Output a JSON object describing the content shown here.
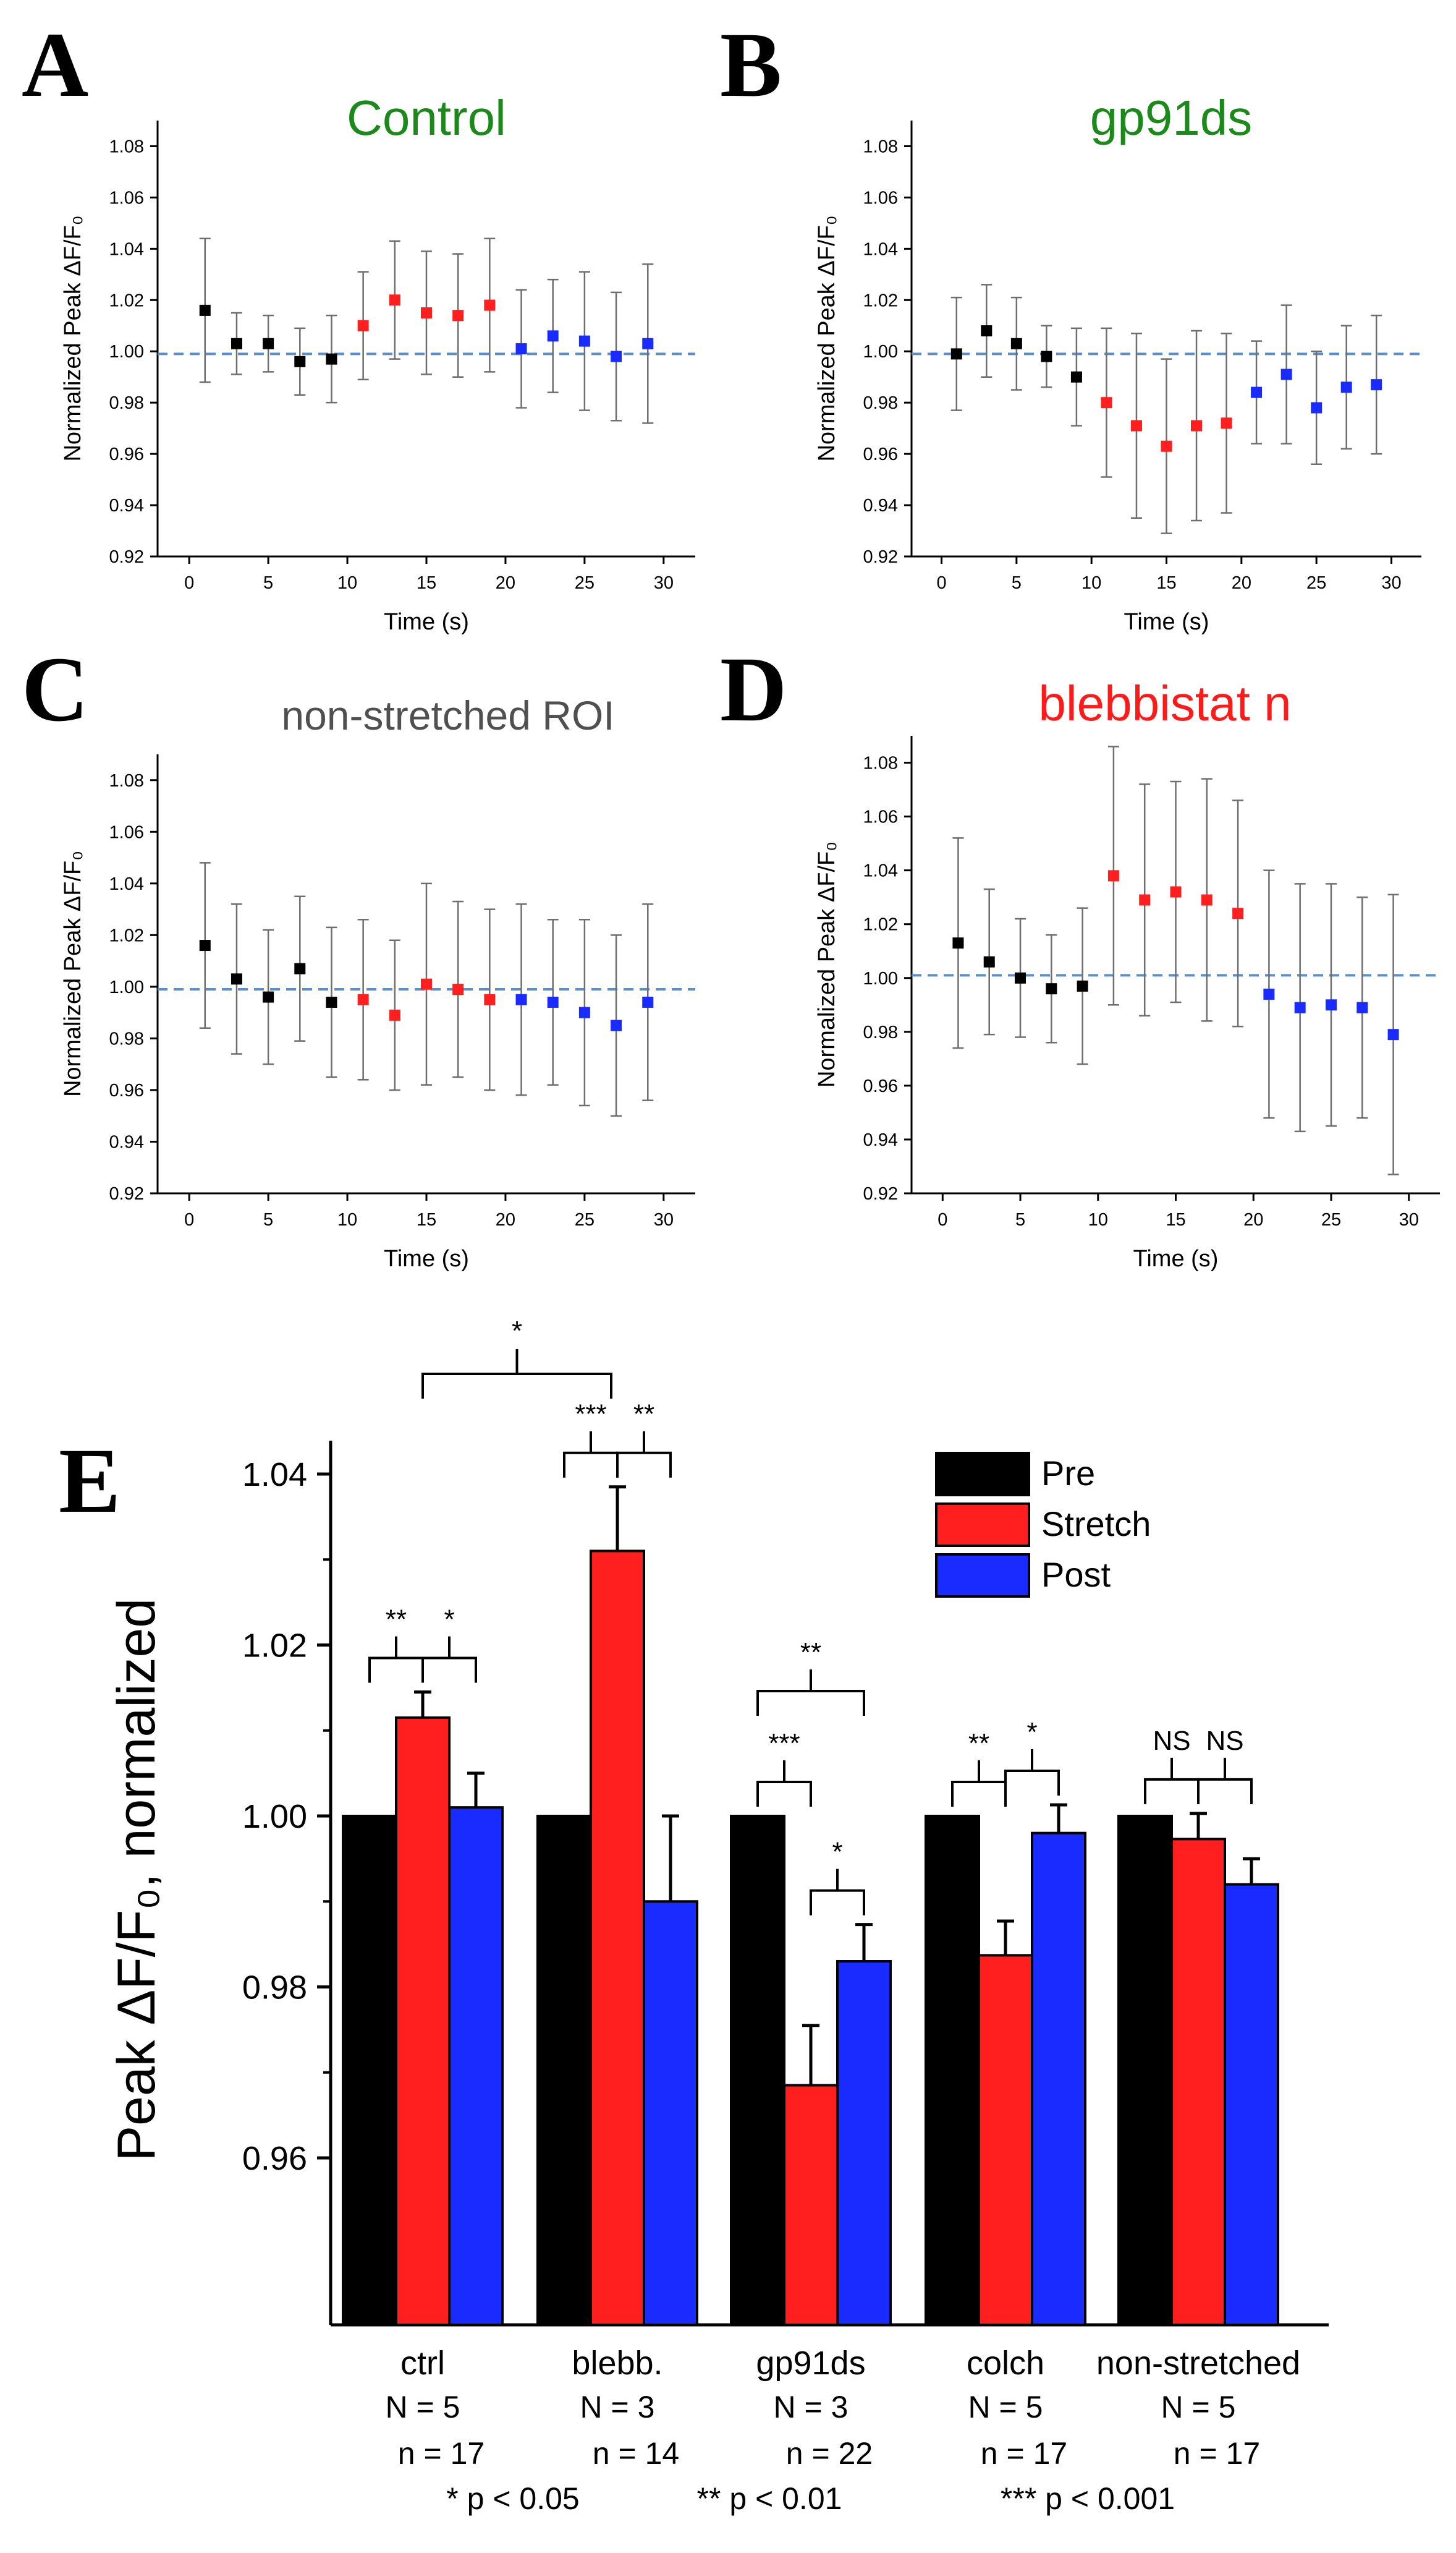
{
  "colors": {
    "pre": "#000000",
    "stretch": "#ff1f1f",
    "post": "#1a2bff",
    "baseline": "#5b8fc9",
    "errorbar": "#6e6e6e",
    "title_green": "#1b8a1b",
    "title_gray": "#505050",
    "title_red": "#ff1a1a"
  },
  "chart_data": [
    {
      "panel": "A",
      "type": "scatter",
      "title": "Control",
      "xlabel": "Time (s)",
      "ylabel": "Normalized Peak ΔF/F₀",
      "xlim": [
        -2,
        32
      ],
      "ylim": [
        0.92,
        1.09
      ],
      "xticks": [
        0,
        5,
        10,
        15,
        20,
        25,
        30
      ],
      "yticks": [
        0.92,
        0.94,
        0.96,
        0.98,
        1.0,
        1.02,
        1.04,
        1.06,
        1.08
      ],
      "ytick_labels": [
        "0.92",
        "0.94",
        "0.96",
        "0.98",
        "1.00",
        "1.02",
        "1.04",
        "1.06",
        "1.08"
      ],
      "baseline": 0.999,
      "series": [
        {
          "phase": "pre",
          "x": [
            1,
            3,
            5,
            7,
            9
          ],
          "y": [
            1.016,
            1.003,
            1.003,
            0.996,
            0.997
          ],
          "err": [
            0.028,
            0.012,
            0.011,
            0.013,
            0.017
          ]
        },
        {
          "phase": "stretch",
          "x": [
            11,
            13,
            15,
            17,
            19
          ],
          "y": [
            1.01,
            1.02,
            1.015,
            1.014,
            1.018
          ],
          "err": [
            0.021,
            0.023,
            0.024,
            0.024,
            0.026
          ]
        },
        {
          "phase": "post",
          "x": [
            21,
            23,
            25,
            27,
            29
          ],
          "y": [
            1.001,
            1.006,
            1.004,
            0.998,
            1.003
          ],
          "err": [
            0.023,
            0.022,
            0.027,
            0.025,
            0.031
          ]
        }
      ]
    },
    {
      "panel": "B",
      "type": "scatter",
      "title": "gp91ds",
      "xlabel": "Time (s)",
      "ylabel": "Normalized Peak ΔF/F₀",
      "xlim": [
        -2,
        32
      ],
      "ylim": [
        0.92,
        1.09
      ],
      "xticks": [
        0,
        5,
        10,
        15,
        20,
        25,
        30
      ],
      "yticks": [
        0.92,
        0.94,
        0.96,
        0.98,
        1.0,
        1.02,
        1.04,
        1.06,
        1.08
      ],
      "ytick_labels": [
        "0.92",
        "0.94",
        "0.96",
        "0.98",
        "1.00",
        "1.02",
        "1.04",
        "1.06",
        "1.08"
      ],
      "baseline": 0.999,
      "series": [
        {
          "phase": "pre",
          "x": [
            1,
            3,
            5,
            7,
            9
          ],
          "y": [
            0.999,
            1.008,
            1.003,
            0.998,
            0.99
          ],
          "err": [
            0.022,
            0.018,
            0.018,
            0.012,
            0.019
          ]
        },
        {
          "phase": "stretch",
          "x": [
            11,
            13,
            15,
            17,
            19
          ],
          "y": [
            0.98,
            0.971,
            0.963,
            0.971,
            0.972
          ],
          "err": [
            0.029,
            0.036,
            0.034,
            0.037,
            0.035
          ]
        },
        {
          "phase": "post",
          "x": [
            21,
            23,
            25,
            27,
            29
          ],
          "y": [
            0.984,
            0.991,
            0.978,
            0.986,
            0.987
          ],
          "err": [
            0.02,
            0.027,
            0.022,
            0.024,
            0.027
          ]
        }
      ]
    },
    {
      "panel": "C",
      "type": "scatter",
      "title": "non-stretched ROI",
      "xlabel": "Time (s)",
      "ylabel": "Normalized Peak ΔF/F₀",
      "xlim": [
        -2,
        32
      ],
      "ylim": [
        0.92,
        1.09
      ],
      "xticks": [
        0,
        5,
        10,
        15,
        20,
        25,
        30
      ],
      "yticks": [
        0.92,
        0.94,
        0.96,
        0.98,
        1.0,
        1.02,
        1.04,
        1.06,
        1.08
      ],
      "ytick_labels": [
        "0.92",
        "0.94",
        "0.96",
        "0.98",
        "1.00",
        "1.02",
        "1.04",
        "1.06",
        "1.08"
      ],
      "baseline": 0.999,
      "series": [
        {
          "phase": "pre",
          "x": [
            1,
            3,
            5,
            7,
            9
          ],
          "y": [
            1.016,
            1.003,
            0.996,
            1.007,
            0.994
          ],
          "err": [
            0.032,
            0.029,
            0.026,
            0.028,
            0.029
          ]
        },
        {
          "phase": "stretch",
          "x": [
            11,
            13,
            15,
            17,
            19
          ],
          "y": [
            0.995,
            0.989,
            1.001,
            0.999,
            0.995
          ],
          "err": [
            0.031,
            0.029,
            0.039,
            0.034,
            0.035
          ]
        },
        {
          "phase": "post",
          "x": [
            21,
            23,
            25,
            27,
            29
          ],
          "y": [
            0.995,
            0.994,
            0.99,
            0.985,
            0.994
          ],
          "err": [
            0.037,
            0.032,
            0.036,
            0.035,
            0.038
          ]
        }
      ]
    },
    {
      "panel": "D",
      "type": "scatter",
      "title": "blebbistat n",
      "xlabel": "Time (s)",
      "ylabel": "Normalized Peak ΔF/F₀",
      "xlim": [
        -2,
        32
      ],
      "ylim": [
        0.92,
        1.09
      ],
      "xticks": [
        0,
        5,
        10,
        15,
        20,
        25,
        30
      ],
      "yticks": [
        0.92,
        0.94,
        0.96,
        0.98,
        1.0,
        1.02,
        1.04,
        1.06,
        1.08
      ],
      "ytick_labels": [
        "0.92",
        "0.94",
        "0.96",
        "0.98",
        "1.00",
        "1.02",
        "1.04",
        "1.06",
        "1.08"
      ],
      "baseline": 1.001,
      "series": [
        {
          "phase": "pre",
          "x": [
            1,
            3,
            5,
            7,
            9
          ],
          "y": [
            1.013,
            1.006,
            1.0,
            0.996,
            0.997
          ],
          "err": [
            0.039,
            0.027,
            0.022,
            0.02,
            0.029
          ]
        },
        {
          "phase": "stretch",
          "x": [
            11,
            13,
            15,
            17,
            19
          ],
          "y": [
            1.038,
            1.029,
            1.032,
            1.029,
            1.024
          ],
          "err": [
            0.048,
            0.043,
            0.041,
            0.045,
            0.042
          ]
        },
        {
          "phase": "post",
          "x": [
            21,
            23,
            25,
            27,
            29
          ],
          "y": [
            0.994,
            0.989,
            0.99,
            0.989,
            0.979
          ],
          "err": [
            0.046,
            0.046,
            0.045,
            0.041,
            0.052
          ]
        }
      ]
    },
    {
      "panel": "E",
      "type": "bar",
      "ylabel": "Peak ΔF/F₀, normalized",
      "ylim": [
        0.945,
        1.047
      ],
      "yticks": [
        0.96,
        0.98,
        1.0,
        1.02,
        1.04
      ],
      "ytick_labels": [
        "0.96",
        "0.98",
        "1.00",
        "1.02",
        "1.04"
      ],
      "legend": {
        "placement": "top-right",
        "entries": [
          "Pre",
          "Stretch",
          "Post"
        ]
      },
      "groups": [
        {
          "label": "ctrl",
          "N": "N = 5",
          "n": "n = 17",
          "values": [
            1.0,
            1.0115,
            1.001
          ],
          "err": [
            0,
            0.003,
            0.004
          ],
          "sig": [
            {
              "pair": [
                0,
                1
              ],
              "text": "**"
            },
            {
              "pair": [
                1,
                2
              ],
              "text": "*"
            }
          ]
        },
        {
          "label": "blebb.",
          "N": "N = 3",
          "n": "n = 14",
          "values": [
            1.0,
            1.031,
            0.99
          ],
          "err": [
            0,
            0.0075,
            0.01
          ],
          "sig": [
            {
              "pair": [
                0,
                1
              ],
              "text": "***"
            },
            {
              "pair": [
                1,
                2
              ],
              "text": "**"
            }
          ]
        },
        {
          "label": "gp91ds",
          "N": "N = 3",
          "n": "n = 22",
          "values": [
            1.0,
            0.9685,
            0.983
          ],
          "err": [
            0,
            0.007,
            0.0043
          ],
          "sig": [
            {
              "pair": [
                0,
                1
              ],
              "text": "***"
            },
            {
              "pair": [
                1,
                2
              ],
              "text": "*"
            }
          ]
        },
        {
          "label": "colch",
          "N": "N = 5",
          "n": "n = 17",
          "values": [
            1.0,
            0.9837,
            0.998
          ],
          "err": [
            0,
            0.004,
            0.0033
          ],
          "sig": [
            {
              "pair": [
                0,
                1
              ],
              "text": "**"
            },
            {
              "pair": [
                1,
                2
              ],
              "text": "*"
            }
          ]
        },
        {
          "label": "non-stretched",
          "N": "N = 5",
          "n": "n = 17",
          "values": [
            1.0,
            0.9973,
            0.992
          ],
          "err": [
            0,
            0.003,
            0.003
          ],
          "sig": [
            {
              "pair": [
                0,
                1
              ],
              "text": "NS"
            },
            {
              "pair": [
                1,
                2
              ],
              "text": "NS"
            }
          ]
        }
      ],
      "group_brackets": [
        {
          "from_group": 0,
          "to_group": 1,
          "text": "*"
        },
        {
          "from_group": 2,
          "text": "**"
        }
      ],
      "footnote": [
        "* p < 0.05",
        "** p < 0.01",
        "*** p < 0.001"
      ]
    }
  ]
}
